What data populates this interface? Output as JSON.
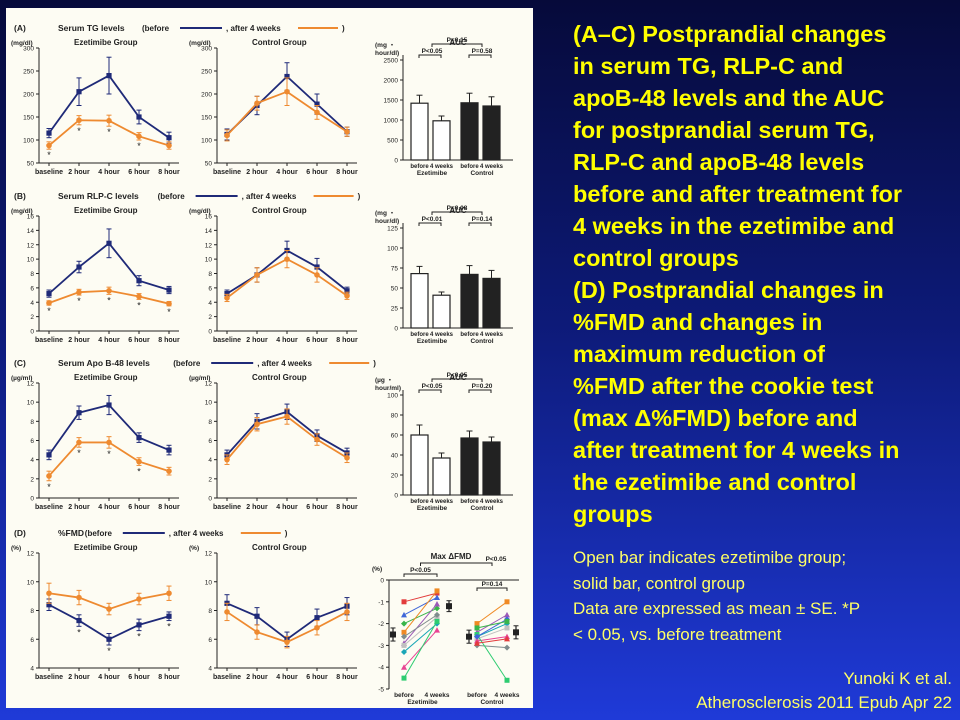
{
  "colors": {
    "before": "#1f2a78",
    "after": "#ee8a30",
    "text_yellow": "#ffff00"
  },
  "caption": {
    "lines": [
      "(A–C) Postprandial changes",
      "in serum TG, RLP-C and",
      "apoB-48 levels and the AUC",
      "for postprandial serum TG,",
      "RLP-C and apoB-48 levels",
      "before and after treatment for",
      "4 weeks in the ezetimibe and",
      "control groups",
      "(D) Postprandial changes in",
      "%FMD and changes in",
      "maximum reduction of",
      "%FMD after the cookie test",
      "(max Δ%FMD) before and",
      "after treatment for 4 weeks in",
      "the ezetimibe and control",
      "groups"
    ]
  },
  "notes": {
    "lines": [
      "Open bar indicates ezetimibe group;",
      "solid bar, control group",
      "Data are expressed as mean ± SE. *P",
      "< 0.05, vs. before treatment"
    ]
  },
  "citation": {
    "line1": "Yunoki K et al.",
    "line2": "Atherosclerosis 2011 Epub Apr 22"
  },
  "chart_data": [
    {
      "panel": "(A)",
      "title": "Serum TG levels",
      "legend_before": "(before",
      "legend_after": ", after 4 weeks",
      "type": "line",
      "group_title": "Ezetimibe Group",
      "unit": "(mg/dl)",
      "ylim": [
        50,
        300
      ],
      "yticks": [
        50,
        100,
        150,
        200,
        250,
        300
      ],
      "categories": [
        "baseline",
        "2 hour",
        "4 hour",
        "6 hour",
        "8 hour"
      ],
      "series": [
        {
          "name": "before",
          "values": [
            115,
            205,
            240,
            150,
            105
          ],
          "err": [
            10,
            30,
            40,
            15,
            12
          ]
        },
        {
          "name": "after 4 weeks",
          "values": [
            88,
            143,
            142,
            108,
            88
          ],
          "err": [
            8,
            10,
            12,
            8,
            8
          ]
        }
      ],
      "significant": [
        0,
        1,
        2,
        3
      ]
    },
    {
      "type": "line",
      "group_title": "Control Group",
      "unit": "(mg/dl)",
      "ylim": [
        50,
        300
      ],
      "yticks": [
        50,
        100,
        150,
        200,
        250,
        300
      ],
      "categories": [
        "baseline",
        "2 hour",
        "4 hour",
        "6 hour",
        "8 hour"
      ],
      "series": [
        {
          "name": "before",
          "values": [
            112,
            175,
            238,
            178,
            118
          ],
          "err": [
            12,
            20,
            30,
            22,
            10
          ]
        },
        {
          "name": "after 4 weeks",
          "values": [
            110,
            180,
            205,
            160,
            118
          ],
          "err": [
            12,
            15,
            30,
            15,
            10
          ]
        }
      ],
      "significant": []
    },
    {
      "type": "bar",
      "title": "AUC",
      "unit": "(mg・hour/dl)",
      "ylim": [
        0,
        2500
      ],
      "yticks": [
        0,
        500,
        1000,
        1500,
        2000,
        2500
      ],
      "categories": [
        "before",
        "4 weeks",
        "before",
        "4 weeks"
      ],
      "group_labels": [
        "Ezetimibe",
        "Control"
      ],
      "values": [
        1420,
        980,
        1430,
        1350
      ],
      "err": [
        200,
        120,
        240,
        230
      ],
      "p_values": {
        "ezetimibe": "P<0.05",
        "control": "P=0.58",
        "between": "P=0.15"
      }
    },
    {
      "panel": "(B)",
      "title": "Serum RLP-C levels",
      "legend_before": "(before",
      "legend_after": ", after 4 weeks",
      "type": "line",
      "group_title": "Ezetimibe Group",
      "unit": "(mg/dl)",
      "ylim": [
        0,
        16
      ],
      "yticks": [
        0,
        2,
        4,
        6,
        8,
        10,
        12,
        14,
        16
      ],
      "categories": [
        "baseline",
        "2 hour",
        "4 hour",
        "6 hour",
        "8 hour"
      ],
      "series": [
        {
          "name": "before",
          "values": [
            5.2,
            8.9,
            12.2,
            7.0,
            5.7
          ],
          "err": [
            0.5,
            0.8,
            2.0,
            0.7,
            0.5
          ]
        },
        {
          "name": "after 4 weeks",
          "values": [
            3.9,
            5.4,
            5.6,
            4.8,
            3.8
          ],
          "err": [
            0.3,
            0.4,
            0.5,
            0.4,
            0.3
          ]
        }
      ],
      "significant": [
        0,
        1,
        2,
        3,
        4
      ]
    },
    {
      "type": "line",
      "group_title": "Control Group",
      "unit": "(mg/dl)",
      "ylim": [
        0,
        16
      ],
      "yticks": [
        0,
        2,
        4,
        6,
        8,
        10,
        12,
        14,
        16
      ],
      "categories": [
        "baseline",
        "2 hour",
        "4 hour",
        "6 hour",
        "8 hour"
      ],
      "series": [
        {
          "name": "before",
          "values": [
            5.2,
            7.8,
            11.2,
            8.9,
            5.6
          ],
          "err": [
            0.5,
            1.0,
            1.3,
            1.2,
            0.5
          ]
        },
        {
          "name": "after 4 weeks",
          "values": [
            4.6,
            7.8,
            10.0,
            7.8,
            4.9
          ],
          "err": [
            0.5,
            1.0,
            1.2,
            1.0,
            0.5
          ]
        }
      ],
      "significant": []
    },
    {
      "type": "bar",
      "title": "AUC",
      "unit": "(mg・hour/dl)",
      "ylim": [
        0,
        125
      ],
      "yticks": [
        0,
        25,
        50,
        75,
        100,
        125
      ],
      "categories": [
        "before",
        "4 weeks",
        "before",
        "4 weeks"
      ],
      "group_labels": [
        "Ezetimibe",
        "Control"
      ],
      "values": [
        68,
        41,
        67,
        62
      ],
      "err": [
        9,
        4,
        11,
        10
      ],
      "p_values": {
        "ezetimibe": "P<0.01",
        "control": "P=0.14",
        "between": "P=0.08"
      }
    },
    {
      "panel": "(C)",
      "title": "Serum Apo B-48 levels",
      "legend_before": "(before",
      "legend_after": ", after 4 weeks",
      "type": "line",
      "group_title": "Ezetimibe Group",
      "unit": "(µg/ml)",
      "ylim": [
        0,
        12
      ],
      "yticks": [
        0,
        2,
        4,
        6,
        8,
        10,
        12
      ],
      "categories": [
        "baseline",
        "2 hour",
        "4 hour",
        "6 hour",
        "8 hour"
      ],
      "series": [
        {
          "name": "before",
          "values": [
            4.5,
            8.9,
            9.7,
            6.3,
            5.0
          ],
          "err": [
            0.5,
            0.7,
            1.0,
            0.5,
            0.5
          ]
        },
        {
          "name": "after 4 weeks",
          "values": [
            2.3,
            5.8,
            5.8,
            3.8,
            2.8
          ],
          "err": [
            0.5,
            0.5,
            0.6,
            0.4,
            0.4
          ]
        }
      ],
      "significant": [
        0,
        1,
        2,
        3
      ]
    },
    {
      "type": "line",
      "group_title": "Control Group",
      "unit": "(µg/ml)",
      "ylim": [
        0,
        12
      ],
      "yticks": [
        0,
        2,
        4,
        6,
        8,
        10,
        12
      ],
      "categories": [
        "baseline",
        "2 hour",
        "4 hour",
        "6 hour",
        "8 hour"
      ],
      "series": [
        {
          "name": "before",
          "values": [
            4.5,
            8.0,
            9.0,
            6.5,
            4.7
          ],
          "err": [
            0.5,
            0.8,
            0.8,
            0.6,
            0.5
          ]
        },
        {
          "name": "after 4 weeks",
          "values": [
            4.0,
            7.7,
            8.5,
            6.1,
            4.2
          ],
          "err": [
            0.5,
            0.7,
            0.8,
            0.6,
            0.5
          ]
        }
      ],
      "significant": []
    },
    {
      "type": "bar",
      "title": "AUC",
      "unit": "(µg・hour/ml)",
      "ylim": [
        0,
        100
      ],
      "yticks": [
        0,
        20,
        40,
        60,
        80,
        100
      ],
      "categories": [
        "before",
        "4 weeks",
        "before",
        "4 weeks"
      ],
      "group_labels": [
        "Ezetimibe",
        "Control"
      ],
      "values": [
        60,
        37,
        57,
        53
      ],
      "err": [
        10,
        5,
        7,
        5
      ],
      "p_values": {
        "ezetimibe": "P<0.05",
        "control": "P=0.20",
        "between": "P<0.05"
      }
    },
    {
      "panel": "(D)",
      "title": "%FMD",
      "legend_before": "(before",
      "legend_after": ", after 4 weeks",
      "type": "line",
      "group_title": "Ezetimibe Group",
      "unit": "(%)",
      "ylim": [
        4,
        12
      ],
      "yticks": [
        4,
        6,
        8,
        10,
        12
      ],
      "categories": [
        "baseline",
        "2 hour",
        "4 hour",
        "6 hour",
        "8 hour"
      ],
      "series": [
        {
          "name": "before",
          "values": [
            8.4,
            7.3,
            6.0,
            7.0,
            7.6
          ],
          "err": [
            0.4,
            0.4,
            0.4,
            0.4,
            0.3
          ]
        },
        {
          "name": "after 4 weeks",
          "values": [
            9.2,
            8.9,
            8.1,
            8.8,
            9.2
          ],
          "err": [
            0.7,
            0.5,
            0.4,
            0.4,
            0.5
          ]
        }
      ],
      "significant": [
        1,
        2,
        3,
        4
      ]
    },
    {
      "type": "line",
      "group_title": "Control Group",
      "unit": "(%)",
      "ylim": [
        4,
        12
      ],
      "yticks": [
        4,
        6,
        8,
        10,
        12
      ],
      "categories": [
        "baseline",
        "2 hour",
        "4 hour",
        "6 hour",
        "8 hour"
      ],
      "series": [
        {
          "name": "before",
          "values": [
            8.5,
            7.6,
            6.0,
            7.5,
            8.3
          ],
          "err": [
            0.6,
            0.6,
            0.5,
            0.6,
            0.6
          ]
        },
        {
          "name": "after 4 weeks",
          "values": [
            7.9,
            6.5,
            5.8,
            6.8,
            7.9
          ],
          "err": [
            0.6,
            0.5,
            0.4,
            0.5,
            0.6
          ]
        }
      ],
      "significant": []
    },
    {
      "type": "scatter",
      "title": "Max ΔFMD",
      "unit": "(%)",
      "ylim": [
        -5,
        0
      ],
      "yticks": [
        -5,
        -4,
        -3,
        -2,
        -1,
        0
      ],
      "categories": [
        "before",
        "4 weeks",
        "before",
        "4 weeks"
      ],
      "group_labels": [
        "Ezetimibe",
        "Control"
      ],
      "means": [
        {
          "mean": -2.5,
          "err": 0.3
        },
        {
          "mean": -1.2,
          "err": 0.25
        },
        {
          "mean": -2.6,
          "err": 0.3
        },
        {
          "mean": -2.4,
          "err": 0.3
        }
      ],
      "paired_ezetimibe": [
        [
          -1.0,
          -0.6
        ],
        [
          -1.6,
          -0.8
        ],
        [
          -2.0,
          -1.3
        ],
        [
          -2.4,
          -0.5
        ],
        [
          -2.9,
          -1.1
        ],
        [
          -3.3,
          -2.0
        ],
        [
          -3.0,
          -1.7
        ],
        [
          -4.0,
          -2.3
        ],
        [
          -2.6,
          -1.6
        ],
        [
          -4.5,
          -1.9
        ]
      ],
      "paired_control": [
        [
          -2.0,
          -1.0
        ],
        [
          -2.4,
          -1.6
        ],
        [
          -2.6,
          -2.0
        ],
        [
          -2.7,
          -2.2
        ],
        [
          -2.8,
          -2.6
        ],
        [
          -3.0,
          -3.1
        ],
        [
          -2.5,
          -4.6
        ],
        [
          -2.9,
          -2.7
        ],
        [
          -2.6,
          -1.8
        ],
        [
          -2.2,
          -1.9
        ]
      ],
      "p_values": {
        "ezetimibe": "P<0.05",
        "control": "P=0.14",
        "between": "P<0.05"
      }
    }
  ]
}
